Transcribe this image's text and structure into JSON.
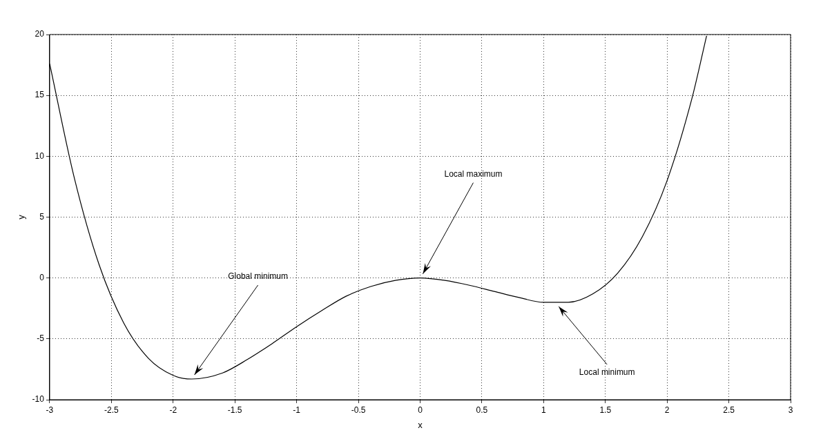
{
  "chart_data": {
    "type": "line",
    "xlabel": "x",
    "ylabel": "y",
    "series": [
      {
        "color": "#000000",
        "x": [
          -3,
          -2.8,
          -2.6,
          -2.4,
          -2.2,
          -2,
          -1.85,
          -1.6,
          -1.4,
          -1.2,
          -1,
          -0.8,
          -0.6,
          -0.4,
          -0.2,
          0,
          0.2,
          0.4,
          0.6,
          0.8,
          1,
          1.1,
          1.2,
          1.4,
          1.6,
          1.8,
          2,
          2.2,
          2.32
        ],
        "values": [
          17.6,
          8.2,
          1.1,
          -3.7,
          -6.6,
          -8,
          -8.3,
          -7.8,
          -6.7,
          -5.4,
          -4,
          -2.7,
          -1.5,
          -0.7,
          -0.2,
          0,
          -0.2,
          -0.6,
          -1.1,
          -1.6,
          -2,
          -2,
          -2,
          -1.3,
          0.4,
          3.4,
          8,
          14.7,
          19.9
        ]
      }
    ],
    "xlim": [
      -3,
      3
    ],
    "xticks": [
      -3,
      -2.5,
      -2,
      -1.5,
      -1,
      -0.5,
      0,
      0.5,
      1,
      1.5,
      2,
      2.5,
      3
    ],
    "ylim": [
      -10,
      20
    ],
    "yticks": [
      -10,
      -5,
      0,
      5,
      10,
      15,
      20
    ],
    "grid": true,
    "legend": false,
    "marker": "none",
    "line_style": "solid",
    "annotations": [
      {
        "text": "Global minimum",
        "x": -1.85,
        "y": -8.3
      },
      {
        "text": "Local maximum",
        "x": 0,
        "y": 0
      },
      {
        "text": "Local minimum",
        "x": 1.1,
        "y": -2
      }
    ]
  }
}
